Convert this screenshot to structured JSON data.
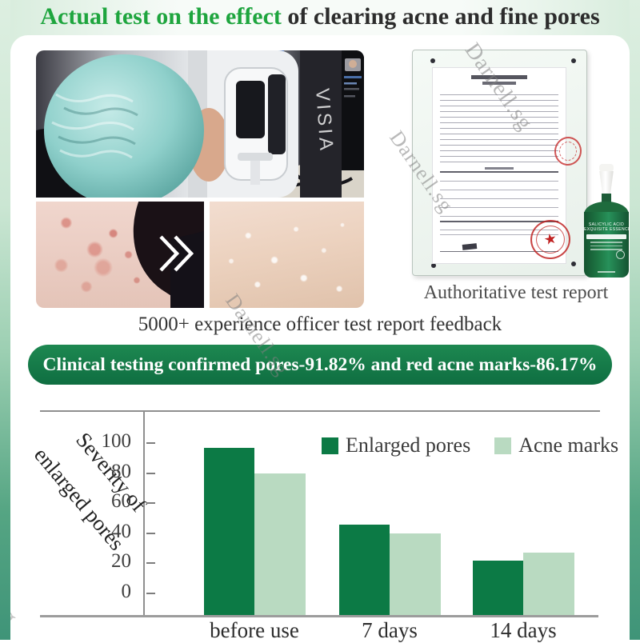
{
  "page": {
    "title": {
      "highlight": "Actual test on the effect",
      "rest": " of clearing acne and fine pores"
    },
    "watermark": "Darnell.sg"
  },
  "machine_photo": {
    "device_label": "VISIA"
  },
  "report": {
    "caption": "Authoritative test report"
  },
  "feedback_line": "5000+ experience officer test report feedback",
  "banner": {
    "text": "Clinical testing confirmed pores-91.82% and red acne marks-86.17%",
    "bg": "#137647"
  },
  "bottle": {
    "label_line1": "SALICYLIC ACID",
    "label_line2": "EXQUISITE ESSENCE"
  },
  "colors": {
    "title_green": "#1ea53e",
    "banner_green": "#137647",
    "edge_band_green": "#3f9478",
    "bar_dark_green": "#0c7a45",
    "bar_light_green": "#b9dac1"
  },
  "chart_data": {
    "type": "bar",
    "categories": [
      "before use",
      "7 days",
      "14 days"
    ],
    "series": [
      {
        "name": "Enlarged pores",
        "color": "#0c7a45",
        "values": [
          97,
          46,
          22
        ]
      },
      {
        "name": "Acne marks",
        "color": "#b9dac1",
        "values": [
          80,
          40,
          27
        ]
      }
    ],
    "title": "",
    "xlabel": "",
    "ylabel": "Severity of enlarged pores",
    "ylabel_lines": [
      "Severity of",
      "enlarged pores"
    ],
    "yticks": [
      0,
      20,
      40,
      60,
      80,
      100
    ],
    "ylim": [
      0,
      100
    ],
    "grid": false,
    "legend_position": "top-right"
  }
}
